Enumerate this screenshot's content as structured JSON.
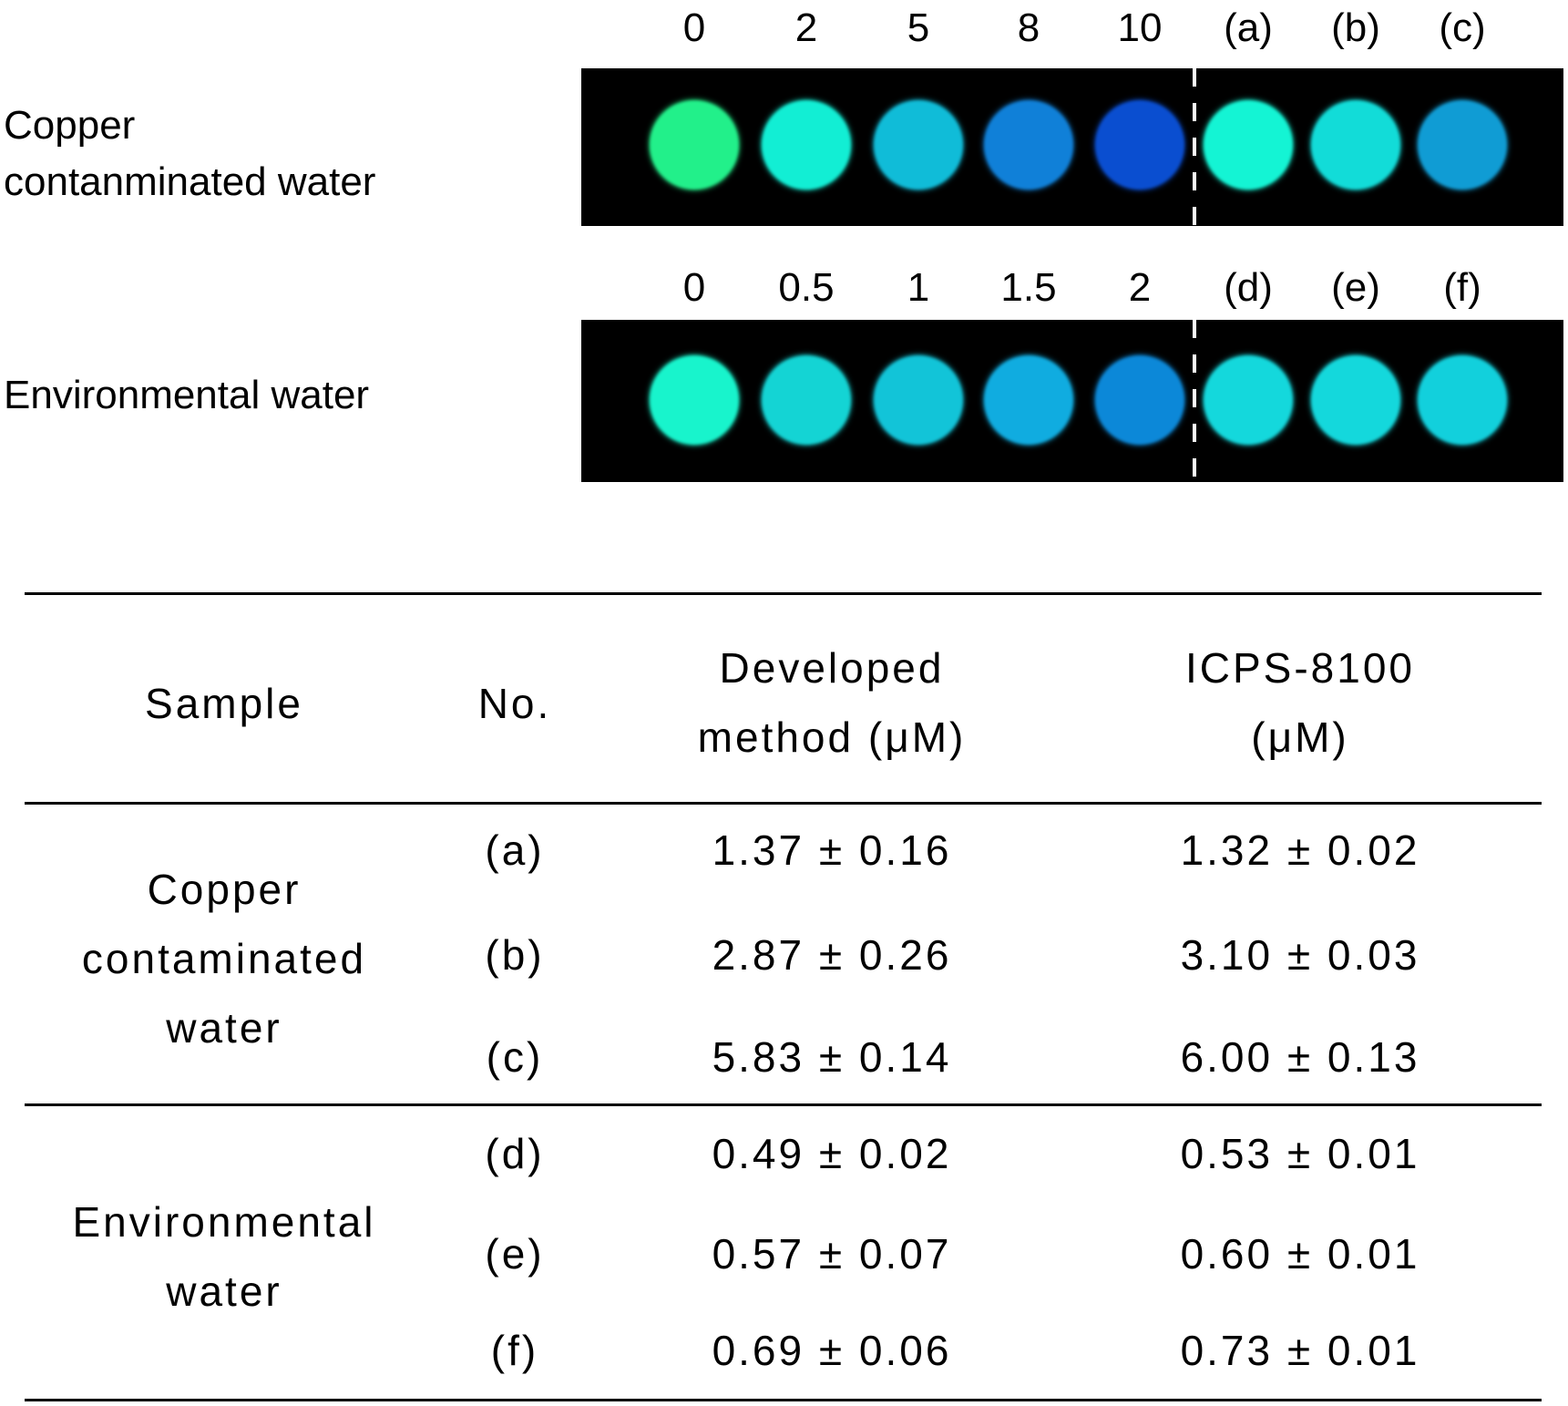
{
  "figure": {
    "rows": [
      {
        "label_lines": [
          "Copper",
          "contanminated water"
        ],
        "column_labels": [
          "0",
          "2",
          "5",
          "8",
          "10",
          "(a)",
          "(b)",
          "(c)"
        ],
        "spot_colors": [
          "#22f08a",
          "#12eed4",
          "#10bcd8",
          "#1080d8",
          "#0a4ed0",
          "#14f4d4",
          "#12dcd8",
          "#109cd4"
        ]
      },
      {
        "label_lines": [
          "Environmental water"
        ],
        "column_labels": [
          "0",
          "0.5",
          "1",
          "1.5",
          "2",
          "(d)",
          "(e)",
          "(f)"
        ],
        "spot_colors": [
          "#18f4cc",
          "#14d4d4",
          "#12c4d8",
          "#10ace0",
          "#0c88d8",
          "#14d8dc",
          "#14d8dc",
          "#12d0dc"
        ]
      }
    ]
  },
  "table": {
    "headers": {
      "sample": "Sample",
      "no": "No.",
      "developed": [
        "Developed",
        "method (μM)"
      ],
      "icps": [
        "ICPS-8100",
        "(μM)"
      ]
    },
    "groups": [
      {
        "sample_lines": [
          "Copper",
          "contaminated",
          "water"
        ],
        "rows": [
          {
            "no": "(a)",
            "developed": "1.37 ± 0.16",
            "icps": "1.32 ± 0.02"
          },
          {
            "no": "(b)",
            "developed": "2.87 ± 0.26",
            "icps": "3.10 ± 0.03"
          },
          {
            "no": "(c)",
            "developed": "5.83 ± 0.14",
            "icps": "6.00 ± 0.13"
          }
        ]
      },
      {
        "sample_lines": [
          "Environmental",
          "water"
        ],
        "rows": [
          {
            "no": "(d)",
            "developed": "0.49 ± 0.02",
            "icps": "0.53 ± 0.01"
          },
          {
            "no": "(e)",
            "developed": "0.57 ± 0.07",
            "icps": "0.60 ± 0.01"
          },
          {
            "no": "(f)",
            "developed": "0.69 ± 0.06",
            "icps": "0.73 ± 0.01"
          }
        ]
      }
    ]
  }
}
